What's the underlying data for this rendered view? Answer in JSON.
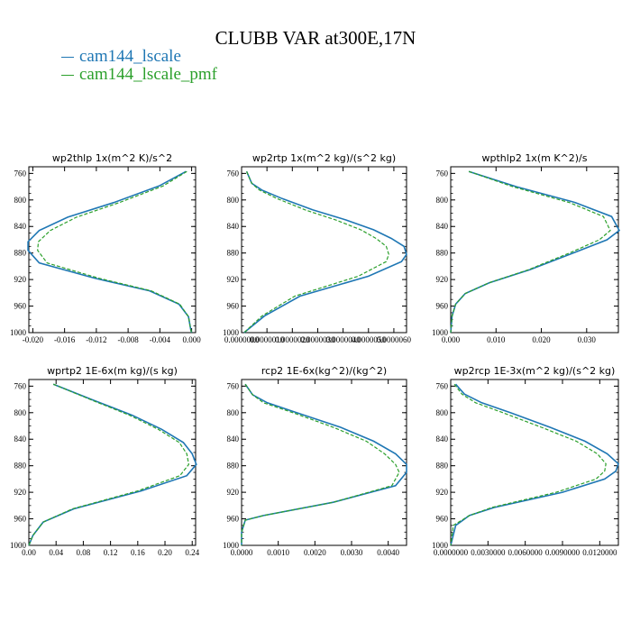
{
  "title": "CLUBB VAR at300E,17N",
  "legend": [
    {
      "label": "cam144_lscale",
      "color": "#1f77b4"
    },
    {
      "label": "cam144_lscale_pmf",
      "color": "#2ca02c"
    }
  ],
  "chart_data": [
    {
      "type": "line",
      "title": "wp2thlp  1x(m^2 K)/s^2",
      "ylim": [
        1000,
        750
      ],
      "yticks": [
        "760",
        "800",
        "840",
        "880",
        "920",
        "960",
        "1000"
      ],
      "xlim": [
        -0.0205,
        0.0005
      ],
      "xticks": [
        -0.02,
        -0.016,
        -0.012,
        -0.008,
        -0.004,
        0.0
      ],
      "xticklabels": [
        "-0.020",
        "-0.016",
        "-0.012",
        "-0.008",
        "-0.004",
        "0.000"
      ],
      "y": [
        757,
        779,
        804,
        826,
        846,
        863,
        876,
        895,
        918,
        937,
        957,
        976,
        996,
        1000
      ],
      "series": [
        {
          "name": "cam144_lscale",
          "values": [
            -0.0007,
            -0.0041,
            -0.0098,
            -0.0156,
            -0.0192,
            -0.0206,
            -0.0206,
            -0.0192,
            -0.0122,
            -0.0053,
            -0.0016,
            -0.0004,
            -0.0001,
            0.0
          ]
        },
        {
          "name": "cam144_lscale_pmf",
          "values": [
            -0.0006,
            -0.0036,
            -0.0091,
            -0.0145,
            -0.0178,
            -0.0193,
            -0.0194,
            -0.0182,
            -0.0117,
            -0.0051,
            -0.0015,
            -0.0004,
            -0.0001,
            0.0
          ]
        }
      ]
    },
    {
      "type": "line",
      "title": "wp2rtp  1x(m^2 kg)/(s^2 kg)",
      "ylim": [
        1000,
        750
      ],
      "yticks": [
        "760",
        "800",
        "840",
        "880",
        "920",
        "960",
        "1000"
      ],
      "xlim": [
        0.0,
        6.5e-06
      ],
      "xticks": [
        0.0,
        1e-06,
        2e-06,
        3e-06,
        4e-06,
        5e-06,
        6e-06
      ],
      "xticklabels": [
        "0.0000000",
        "0.0000010",
        "0.0000020",
        "0.0000030",
        "0.0000040",
        "0.0000050",
        "0.0000060"
      ],
      "y": [
        757,
        775,
        785,
        798,
        815,
        830,
        845,
        858,
        870,
        882,
        893,
        915,
        945,
        975,
        1000
      ],
      "series": [
        {
          "name": "cam144_lscale",
          "values": [
            2e-07,
            4e-07,
            8e-07,
            1.6e-06,
            2.8e-06,
            4.1e-06,
            5.2e-06,
            5.9e-06,
            6.4e-06,
            6.5e-06,
            6.3e-06,
            5e-06,
            2.3e-06,
            9e-07,
            1e-07
          ]
        },
        {
          "name": "cam144_lscale_pmf",
          "values": [
            2e-07,
            4e-07,
            7e-07,
            1.4e-06,
            2.5e-06,
            3.7e-06,
            4.7e-06,
            5.3e-06,
            5.7e-06,
            5.8e-06,
            5.7e-06,
            4.6e-06,
            2.1e-06,
            8e-07,
            1e-07
          ]
        }
      ]
    },
    {
      "type": "line",
      "title": "wpthlp2  1x(m K^2)/s",
      "ylim": [
        1000,
        750
      ],
      "yticks": [
        "760",
        "800",
        "840",
        "880",
        "920",
        "960",
        "1000"
      ],
      "xlim": [
        0.0,
        0.037
      ],
      "xticks": [
        0.0,
        0.01,
        0.02,
        0.03
      ],
      "xticklabels": [
        "0.000",
        "0.010",
        "0.020",
        "0.030"
      ],
      "y": [
        757,
        780,
        804,
        825,
        846,
        860,
        880,
        905,
        925,
        941,
        957,
        975,
        1000
      ],
      "series": [
        {
          "name": "cam144_lscale",
          "values": [
            0.004,
            0.0145,
            0.0275,
            0.0355,
            0.0372,
            0.0345,
            0.027,
            0.0175,
            0.0085,
            0.0032,
            0.0011,
            0.0003,
            0.0
          ]
        },
        {
          "name": "cam144_lscale_pmf",
          "values": [
            0.004,
            0.0137,
            0.0262,
            0.0337,
            0.0352,
            0.0328,
            0.0262,
            0.0172,
            0.0084,
            0.0032,
            0.0011,
            0.0003,
            0.0
          ]
        }
      ]
    },
    {
      "type": "line",
      "title": "wprtp2  1E-6x(m kg)/(s kg)",
      "ylim": [
        1000,
        750
      ],
      "yticks": [
        "760",
        "800",
        "840",
        "880",
        "920",
        "960",
        "1000"
      ],
      "xlim": [
        0.0,
        0.245
      ],
      "xticks": [
        0.0,
        0.04,
        0.08,
        0.12,
        0.16,
        0.2,
        0.24
      ],
      "xticklabels": [
        "0.00",
        "0.04",
        "0.08",
        "0.12",
        "0.16",
        "0.20",
        "0.24"
      ],
      "y": [
        757,
        780,
        804,
        825,
        845,
        862,
        878,
        895,
        918,
        945,
        965,
        985,
        1000
      ],
      "series": [
        {
          "name": "cam144_lscale",
          "values": [
            0.036,
            0.092,
            0.152,
            0.195,
            0.227,
            0.24,
            0.246,
            0.232,
            0.165,
            0.066,
            0.021,
            0.006,
            0.0
          ]
        },
        {
          "name": "cam144_lscale_pmf",
          "values": [
            0.036,
            0.09,
            0.148,
            0.19,
            0.221,
            0.232,
            0.235,
            0.222,
            0.16,
            0.064,
            0.021,
            0.006,
            0.0
          ]
        }
      ]
    },
    {
      "type": "line",
      "title": "rcp2  1E-6x(kg^2)/(kg^2)",
      "ylim": [
        1000,
        750
      ],
      "yticks": [
        "760",
        "800",
        "840",
        "880",
        "920",
        "960",
        "1000"
      ],
      "xlim": [
        0.0,
        0.0045
      ],
      "xticks": [
        0.0,
        0.001,
        0.002,
        0.003,
        0.004
      ],
      "xticklabels": [
        "0.0000",
        "0.0010",
        "0.0020",
        "0.0030",
        "0.0040"
      ],
      "y": [
        757,
        773,
        785,
        800,
        822,
        843,
        862,
        878,
        890,
        910,
        935,
        955,
        962,
        980,
        1000
      ],
      "series": [
        {
          "name": "cam144_lscale",
          "values": [
            0.0001,
            0.0003,
            0.0007,
            0.0015,
            0.0027,
            0.0036,
            0.0042,
            0.0045,
            0.0045,
            0.0042,
            0.0025,
            0.0006,
            0.0001,
            0.0,
            0.0
          ]
        },
        {
          "name": "cam144_lscale_pmf",
          "values": [
            0.0001,
            0.0003,
            0.0006,
            0.0014,
            0.0025,
            0.0034,
            0.0039,
            0.0042,
            0.0043,
            0.0041,
            0.0025,
            0.0006,
            0.0001,
            0.0,
            0.0
          ]
        }
      ]
    },
    {
      "type": "line",
      "title": "wp2rcp  1E-3x(m^2 kg)/(s^2 kg)",
      "ylim": [
        1000,
        750
      ],
      "yticks": [
        "760",
        "800",
        "840",
        "880",
        "920",
        "960",
        "1000"
      ],
      "xlim": [
        0.0,
        0.0135
      ],
      "xticks": [
        0.0,
        0.003,
        0.006,
        0.009,
        0.012
      ],
      "xticklabels": [
        "0.0000000",
        "0.0030000",
        "0.0060000",
        "0.0090000",
        "0.0120000"
      ],
      "y": [
        757,
        772,
        785,
        800,
        822,
        843,
        862,
        877,
        888,
        900,
        920,
        943,
        955,
        970,
        1000
      ],
      "series": [
        {
          "name": "cam144_lscale",
          "values": [
            0.0004,
            0.0011,
            0.0025,
            0.0048,
            0.008,
            0.0108,
            0.0126,
            0.0135,
            0.0133,
            0.0124,
            0.009,
            0.0035,
            0.0015,
            0.0004,
            0.0
          ]
        },
        {
          "name": "cam144_lscale_pmf",
          "values": [
            0.0003,
            0.0009,
            0.002,
            0.0042,
            0.0073,
            0.0101,
            0.0118,
            0.0125,
            0.0124,
            0.0117,
            0.0085,
            0.0033,
            0.0015,
            0.0002,
            0.0
          ]
        }
      ]
    }
  ]
}
